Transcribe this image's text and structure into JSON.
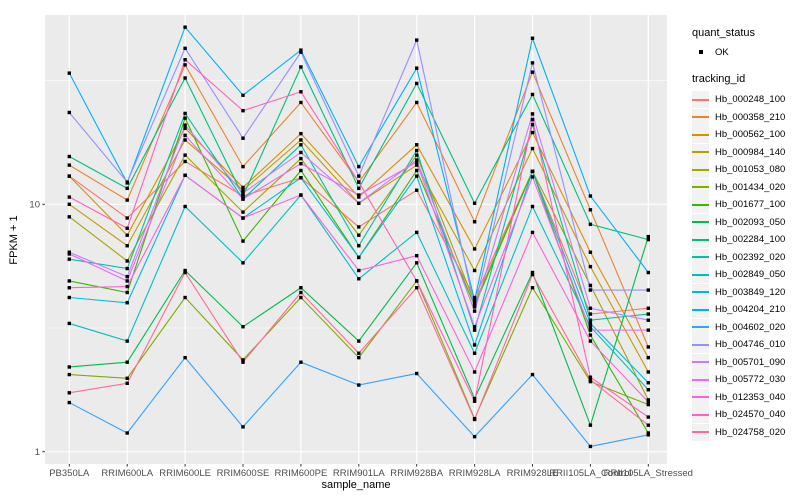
{
  "chart_data": {
    "type": "line",
    "title": "",
    "xlabel": "sample_name",
    "ylabel": "FPKM + 1",
    "y_scale": "log10",
    "grid": "on",
    "legend_position": "right",
    "point_color": "#000000",
    "panel_bg": "#EBEBEB",
    "grid_color": "#FFFFFF",
    "tick_color": "#333333",
    "tick_label_color": "#4D4D4D",
    "legend_key_bg": "#F2F2F2",
    "ylim": [
      0.93,
      58
    ],
    "y_tick_values": [
      1,
      10
    ],
    "y_tick_labels": [
      "1",
      "10"
    ],
    "y_minor_values": [
      3.162,
      31.62
    ],
    "categories": [
      "PB350LA",
      "RRIM600LA",
      "RRIM600LE",
      "RRIM600SE",
      "RRIM600PE",
      "RRIM901LA",
      "RRIM928BA",
      "RRIM928LA",
      "RRIM928LE",
      "RRII105LA_Control",
      "RRII105LA_Stressed"
    ],
    "legend": {
      "quant_status_title": "quant_status",
      "ok_label": "OK",
      "tracking_title": "tracking_id"
    },
    "series": [
      {
        "name": "Hb_000248_100",
        "color": "#F8766D",
        "values": [
          13.0,
          8.8,
          14.9,
          10.8,
          12.8,
          8.1,
          11.4,
          4.2,
          13.6,
          3.6,
          3.8
        ]
      },
      {
        "name": "Hb_000358_210",
        "color": "#EA8331",
        "values": [
          14.4,
          10.4,
          36.6,
          14.2,
          25.8,
          12.3,
          25.8,
          8.5,
          34.2,
          9.5,
          2.65
        ]
      },
      {
        "name": "Hb_000562_100",
        "color": "#D89000",
        "values": [
          13.0,
          7.5,
          20.3,
          11.7,
          19.3,
          10.7,
          17.4,
          6.6,
          19.5,
          6.4,
          2.4
        ]
      },
      {
        "name": "Hb_000984_140",
        "color": "#C09B00",
        "values": [
          10.0,
          6.8,
          18.2,
          11.4,
          18.2,
          10.1,
          14.4,
          5.4,
          16.8,
          5.6,
          2.1
        ]
      },
      {
        "name": "Hb_001053_080",
        "color": "#A3A500",
        "values": [
          8.9,
          5.9,
          15.8,
          9.3,
          15.3,
          7.5,
          15.8,
          4.0,
          13.6,
          4.7,
          1.62
        ]
      },
      {
        "name": "Hb_001434_020",
        "color": "#7CAE00",
        "values": [
          2.05,
          1.98,
          4.2,
          2.35,
          4.2,
          2.4,
          4.9,
          1.36,
          4.6,
          1.92,
          1.55
        ]
      },
      {
        "name": "Hb_001677_100",
        "color": "#39B600",
        "values": [
          4.9,
          4.4,
          22.3,
          7.1,
          13.7,
          6.1,
          13.7,
          3.9,
          13.6,
          2.96,
          1.19
        ]
      },
      {
        "name": "Hb_002093_050",
        "color": "#00BB4E",
        "values": [
          2.2,
          2.3,
          5.4,
          3.2,
          4.6,
          2.8,
          5.8,
          1.64,
          5.3,
          1.28,
          7.4
        ]
      },
      {
        "name": "Hb_002284_100",
        "color": "#00BF7D",
        "values": [
          15.6,
          11.6,
          32.4,
          10.8,
          35.9,
          11.6,
          30.8,
          10.1,
          27.8,
          8.3,
          7.2
        ]
      },
      {
        "name": "Hb_002392_020",
        "color": "#00C1A3",
        "values": [
          6.0,
          5.5,
          23.3,
          10.5,
          17.4,
          6.8,
          16.5,
          3.1,
          21.0,
          3.4,
          3.6
        ]
      },
      {
        "name": "Hb_002849_050",
        "color": "#00BFC4",
        "values": [
          3.3,
          2.8,
          9.8,
          5.8,
          10.9,
          5.0,
          7.7,
          2.5,
          9.8,
          3.2,
          1.78
        ]
      },
      {
        "name": "Hb_003849_120",
        "color": "#00BAE0",
        "values": [
          4.2,
          4.0,
          13.1,
          8.8,
          12.8,
          6.1,
          13.0,
          2.7,
          13.6,
          3.3,
          1.9
        ]
      },
      {
        "name": "Hb_004204_210",
        "color": "#00B0F6",
        "values": [
          33.9,
          12.2,
          52.0,
          27.6,
          42.0,
          14.2,
          35.5,
          4.1,
          46.9,
          10.8,
          5.3
        ]
      },
      {
        "name": "Hb_004602_020",
        "color": "#35A2FF",
        "values": [
          1.58,
          1.19,
          2.4,
          1.26,
          2.3,
          1.86,
          2.07,
          1.15,
          2.05,
          1.05,
          1.17
        ]
      },
      {
        "name": "Hb_004746_010",
        "color": "#9590FF",
        "values": [
          23.5,
          12.3,
          42.7,
          18.5,
          41.2,
          13.0,
          46.1,
          3.85,
          37.3,
          4.5,
          4.5
        ]
      },
      {
        "name": "Hb_005701_090",
        "color": "#C77CFF",
        "values": [
          6.4,
          5.1,
          20.9,
          11.1,
          16.2,
          10.1,
          15.1,
          3.7,
          23.2,
          3.8,
          3.4
        ]
      },
      {
        "name": "Hb_005772_030",
        "color": "#E76BF3",
        "values": [
          6.3,
          4.9,
          19.0,
          10.5,
          14.6,
          10.9,
          14.8,
          3.2,
          12.9,
          3.1,
          3.1
        ]
      },
      {
        "name": "Hb_012353_040",
        "color": "#FA62DB",
        "values": [
          4.6,
          4.65,
          13.1,
          8.8,
          10.9,
          5.4,
          6.2,
          2.1,
          7.7,
          2.8,
          1.59
        ]
      },
      {
        "name": "Hb_024570_040",
        "color": "#FF62BC",
        "values": [
          10.7,
          8.0,
          38.4,
          23.9,
          28.5,
          12.3,
          4.9,
          1.6,
          22.0,
          2.0,
          1.38
        ]
      },
      {
        "name": "Hb_024758_020",
        "color": "#FF6A98",
        "values": [
          1.73,
          1.89,
          5.3,
          2.3,
          4.4,
          2.5,
          4.6,
          1.35,
          5.2,
          1.95,
          1.28
        ]
      }
    ]
  }
}
